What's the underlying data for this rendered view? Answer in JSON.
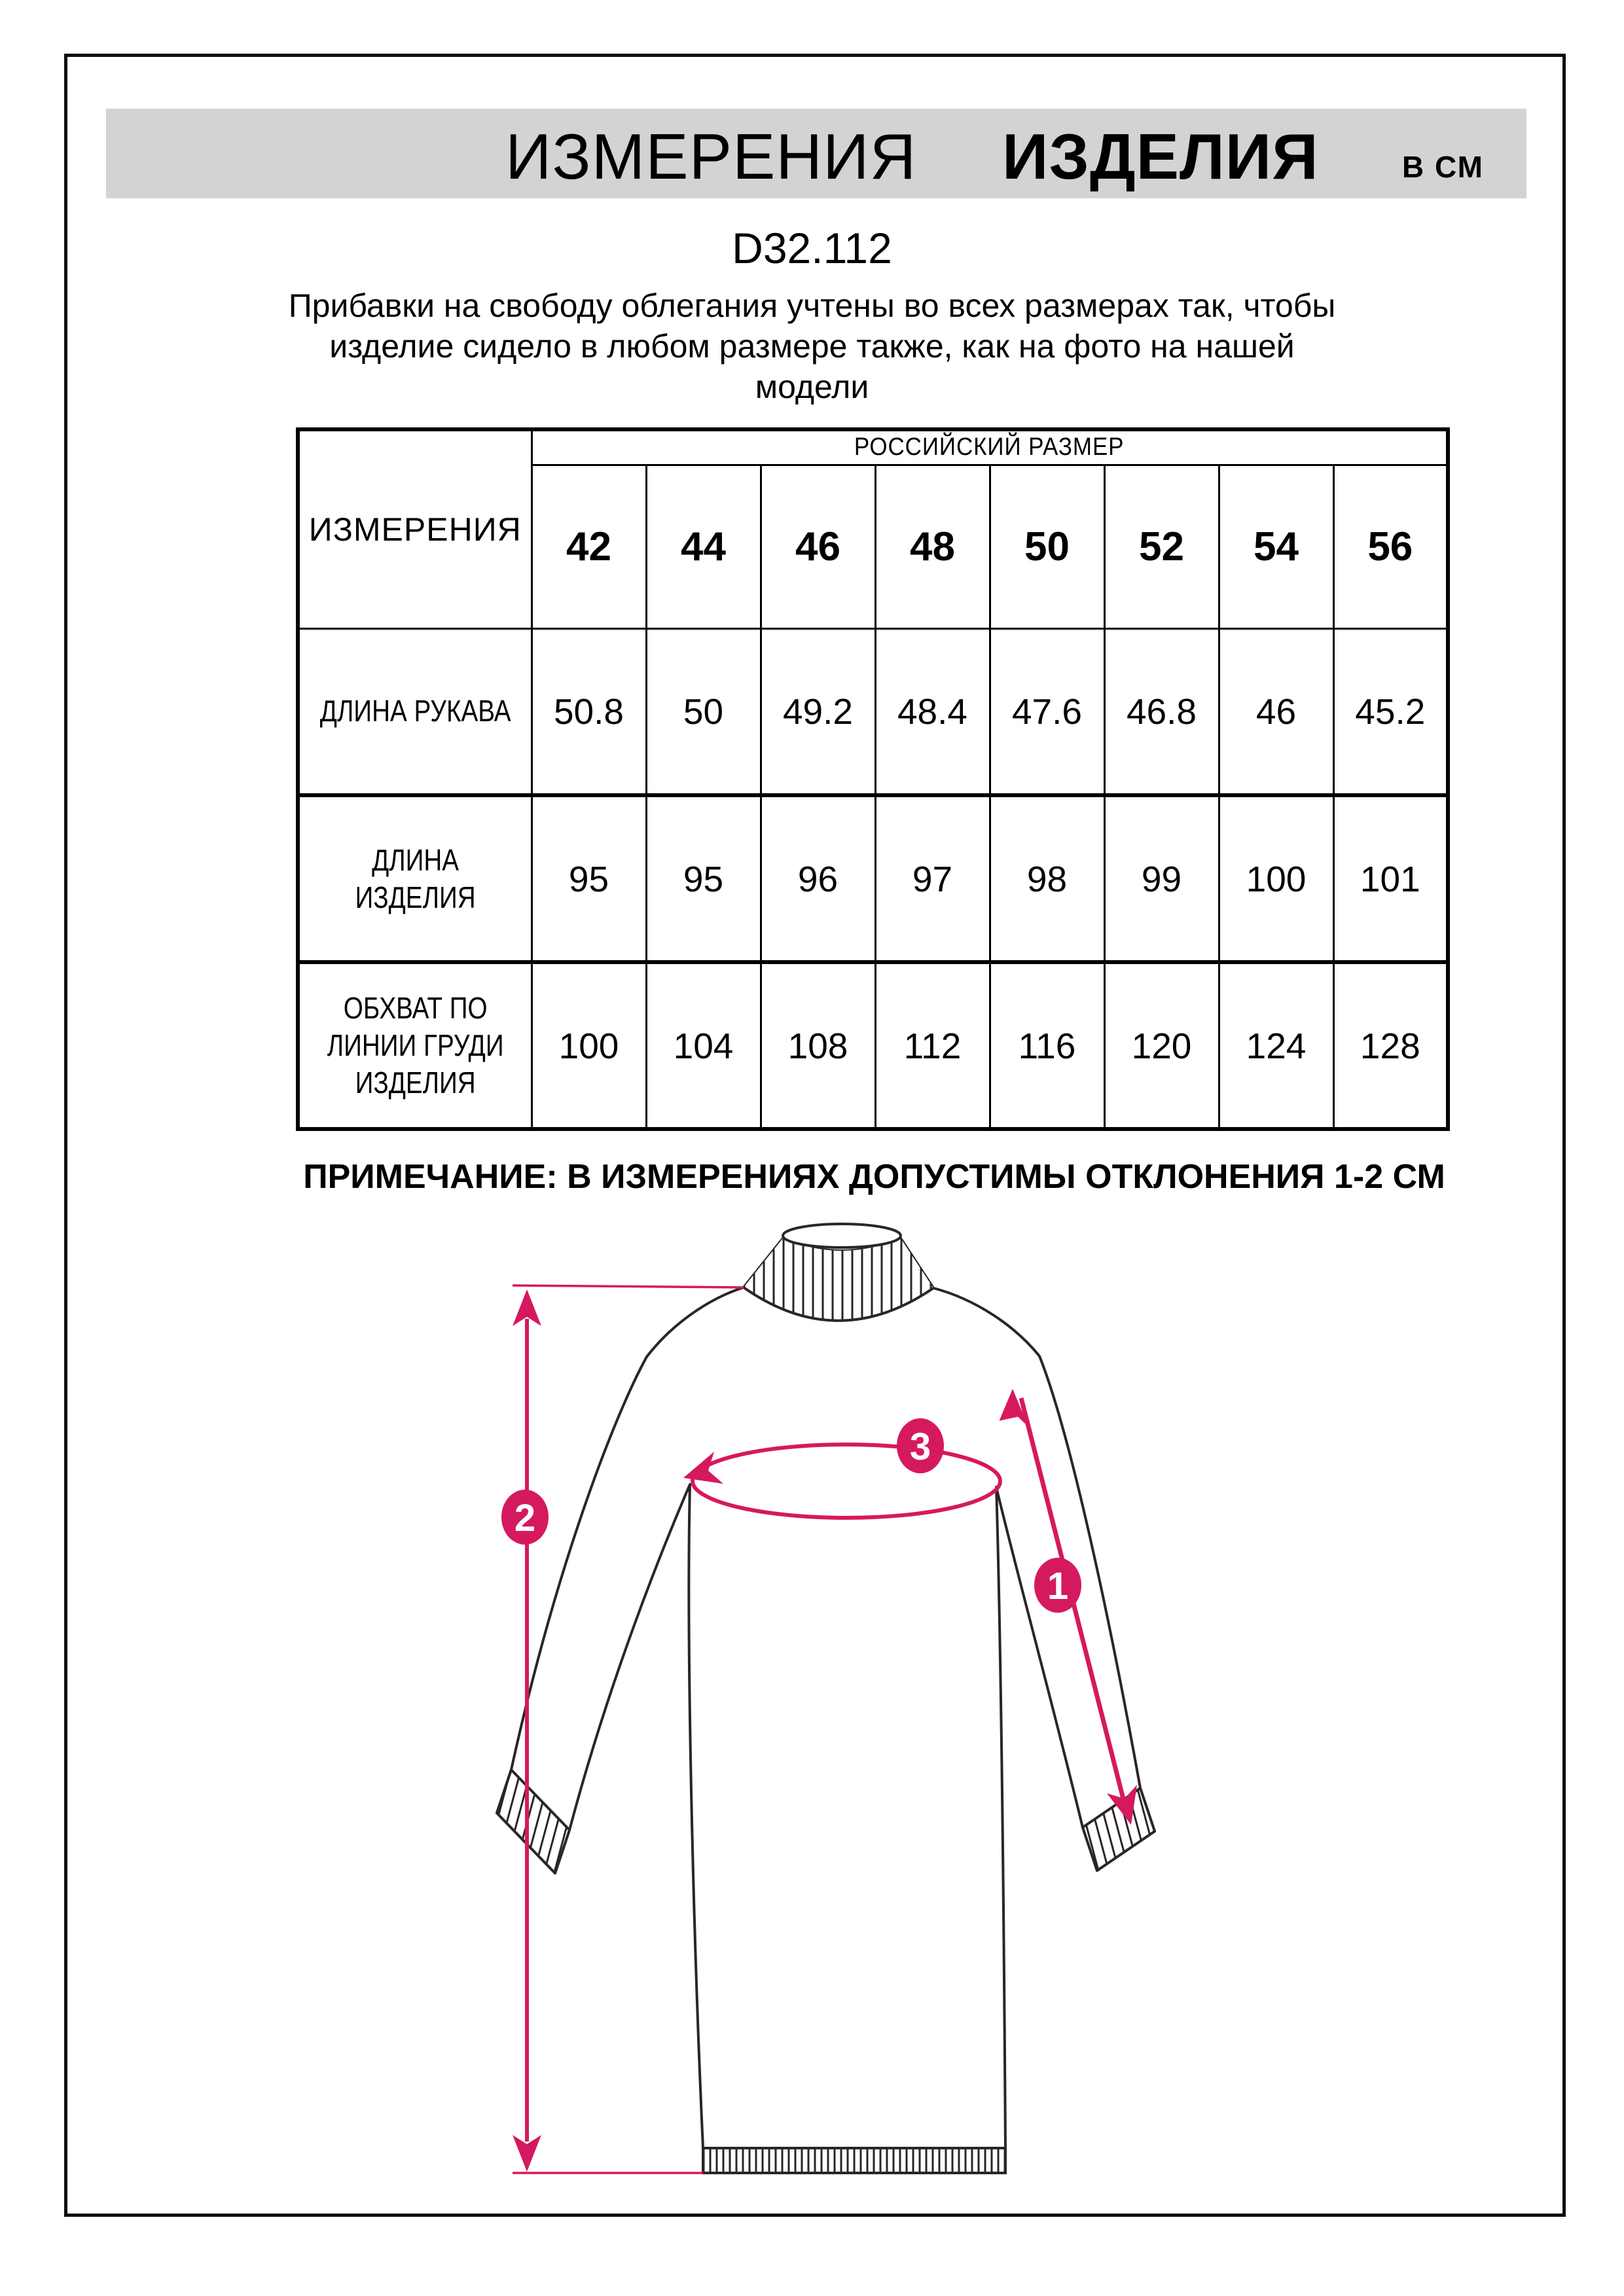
{
  "header": {
    "title_word1": "ИЗМЕРЕНИЯ",
    "title_word2": "ИЗДЕЛИЯ",
    "title_unit": "В СМ"
  },
  "product_code": "D32.112",
  "description": {
    "line1": "Прибавки на свободу облегания учтены во всех размерах так, чтобы",
    "line2": "изделие сидело в любом размере также, как на фото на нашей",
    "line3": "модели"
  },
  "size_table": {
    "measure_header": "ИЗМЕРЕНИЯ",
    "size_group_header": "РОССИЙСКИЙ РАЗМЕР",
    "sizes": [
      "42",
      "44",
      "46",
      "48",
      "50",
      "52",
      "54",
      "56"
    ],
    "rows": [
      {
        "num": "1",
        "label": "ДЛИНА РУКАВА",
        "values": [
          "50.8",
          "50",
          "49.2",
          "48.4",
          "47.6",
          "46.8",
          "46",
          "45.2"
        ]
      },
      {
        "num": "2",
        "label": "ДЛИНА\nИЗДЕЛИЯ",
        "values": [
          "95",
          "95",
          "96",
          "97",
          "98",
          "99",
          "100",
          "101"
        ]
      },
      {
        "num": "3",
        "label": "ОБХВАТ ПО\nЛИНИИ ГРУДИ\nИЗДЕЛИЯ",
        "values": [
          "100",
          "104",
          "108",
          "112",
          "116",
          "120",
          "124",
          "128"
        ]
      }
    ]
  },
  "note": "ПРИМЕЧАНИЕ: В ИЗМЕРЕНИЯХ ДОПУСТИМЫ ОТКЛОНЕНИЯ 1-2 СМ",
  "diagram": {
    "badges": [
      "1",
      "2",
      "3"
    ]
  },
  "colors": {
    "accent": "#d5195e",
    "badge": "#c41a5c",
    "banner_bg": "#d3d3d3",
    "outline": "#2a2628"
  }
}
